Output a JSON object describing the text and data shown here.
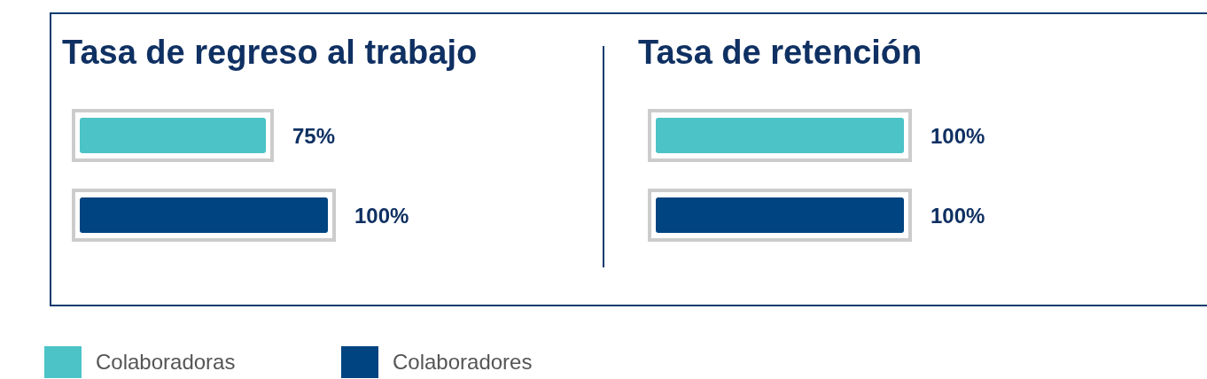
{
  "chart_data": [
    {
      "type": "bar",
      "title": "Tasa de regreso al trabajo",
      "orientation": "horizontal",
      "stacked": true,
      "categories": [
        null,
        null
      ],
      "legend": "bottom",
      "series": [
        {
          "name": "Colaboradoras",
          "color": "#4bc3c7",
          "values": [
            75,
            null
          ],
          "value_labels": [
            "75%",
            null
          ]
        },
        {
          "name": "Colaboradores",
          "color": "#004481",
          "values": [
            null,
            100
          ],
          "value_labels": [
            null,
            "100%"
          ]
        }
      ]
    },
    {
      "type": "bar",
      "title": "Tasa de retención",
      "orientation": "horizontal",
      "stacked": true,
      "categories": [
        null,
        null
      ],
      "series": [
        {
          "color": "#4bc3c7",
          "values": [
            100,
            null
          ],
          "value_labels": [
            "100%",
            null
          ]
        },
        {
          "color": "#004481",
          "values": [
            null,
            100
          ],
          "value_labels": [
            null,
            "100%"
          ]
        }
      ]
    }
  ]
}
